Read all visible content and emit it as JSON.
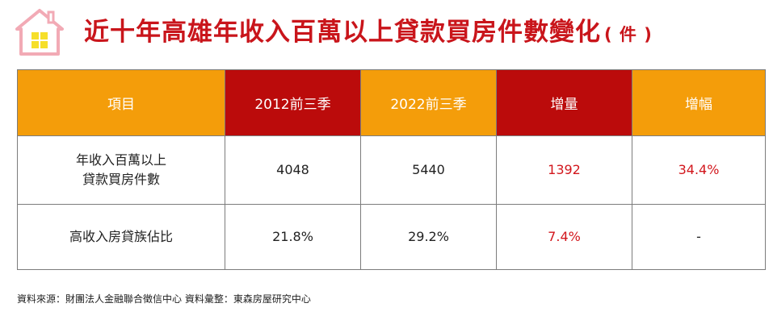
{
  "header": {
    "title": "近十年高雄年收入百萬以上貸款買房件數變化",
    "unit": "( 件 )",
    "logo_icon": "house-icon",
    "colors": {
      "title": "#c9151b",
      "house": "#f2aab5",
      "window": "#f6df2a"
    }
  },
  "table": {
    "columns": [
      "項目",
      "2012前三季",
      "2022前三季",
      "增量",
      "增幅"
    ],
    "header_colors": [
      "#f49d0a",
      "#bb0b0b",
      "#f49d0a",
      "#bb0b0b",
      "#f49d0a"
    ],
    "highlight_color": "#d2161c",
    "rows": [
      {
        "label_lines": [
          "年收入百萬以上",
          "貸款買房件數"
        ],
        "y2012": "4048",
        "y2022": "5440",
        "increase": "1392",
        "growth": "34.4%"
      },
      {
        "label_lines": [
          "高收入房貸族佔比"
        ],
        "y2012": "21.8%",
        "y2022": "29.2%",
        "increase": "7.4%",
        "growth": "-"
      }
    ]
  },
  "footer": {
    "source": "資料來源：財團法人金融聯合徵信中心 資料彙整：東森房屋研究中心"
  }
}
